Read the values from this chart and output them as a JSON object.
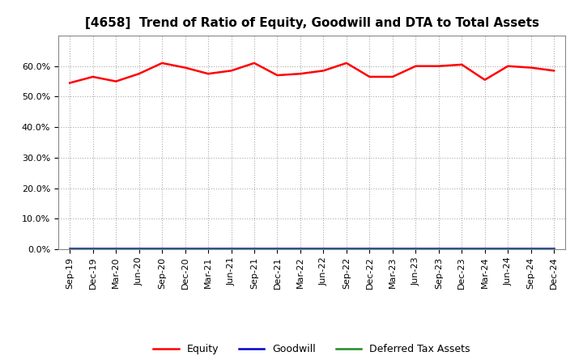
{
  "title": "[4658]  Trend of Ratio of Equity, Goodwill and DTA to Total Assets",
  "x_labels": [
    "Sep-19",
    "Dec-19",
    "Mar-20",
    "Jun-20",
    "Sep-20",
    "Dec-20",
    "Mar-21",
    "Jun-21",
    "Sep-21",
    "Dec-21",
    "Mar-22",
    "Jun-22",
    "Sep-22",
    "Dec-22",
    "Mar-23",
    "Jun-23",
    "Sep-23",
    "Dec-23",
    "Mar-24",
    "Jun-24",
    "Sep-24",
    "Dec-24"
  ],
  "equity": [
    54.5,
    56.5,
    55.0,
    57.5,
    61.0,
    59.5,
    57.5,
    58.5,
    61.0,
    57.0,
    57.5,
    58.5,
    61.0,
    56.5,
    56.5,
    60.0,
    60.0,
    60.5,
    55.5,
    60.0,
    59.5,
    58.5
  ],
  "goodwill": [
    0.3,
    0.3,
    0.3,
    0.3,
    0.3,
    0.3,
    0.3,
    0.3,
    0.3,
    0.3,
    0.3,
    0.3,
    0.3,
    0.3,
    0.3,
    0.3,
    0.3,
    0.3,
    0.3,
    0.3,
    0.3,
    0.3
  ],
  "dta": [
    0.0,
    0.0,
    0.0,
    0.0,
    0.0,
    0.0,
    0.0,
    0.0,
    0.0,
    0.0,
    0.0,
    0.0,
    0.0,
    0.0,
    0.0,
    0.0,
    0.0,
    0.0,
    0.0,
    0.0,
    0.0,
    0.0
  ],
  "equity_color": "#ff0000",
  "goodwill_color": "#0000cd",
  "dta_color": "#228b22",
  "ylim": [
    0,
    70
  ],
  "yticks": [
    0,
    10,
    20,
    30,
    40,
    50,
    60
  ],
  "ytick_labels": [
    "0.0%",
    "10.0%",
    "20.0%",
    "30.0%",
    "40.0%",
    "50.0%",
    "60.0%"
  ],
  "bg_color": "#ffffff",
  "plot_bg_color": "#ffffff",
  "grid_color": "#aaaaaa",
  "title_fontsize": 11,
  "tick_fontsize": 8,
  "legend_fontsize": 9
}
